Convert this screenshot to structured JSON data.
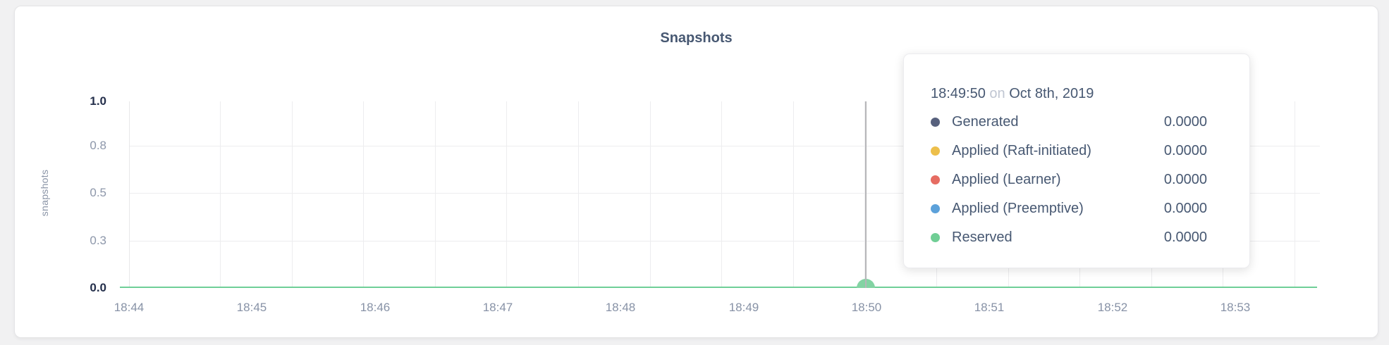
{
  "chart": {
    "title": "Snapshots",
    "y_axis": {
      "label": "snapshots",
      "ticks": [
        "1.0",
        "0.8",
        "0.5",
        "0.3",
        "0.0"
      ]
    },
    "x_axis": {
      "ticks": [
        "18:44",
        "18:45",
        "18:46",
        "18:47",
        "18:48",
        "18:49",
        "18:50",
        "18:51",
        "18:52",
        "18:53"
      ]
    }
  },
  "tooltip": {
    "time": "18:49:50",
    "connector": "on",
    "date": "Oct 8th, 2019",
    "rows": [
      {
        "label": "Generated",
        "value": "0.0000",
        "color": "#57617D"
      },
      {
        "label": "Applied (Raft-initiated)",
        "value": "0.0000",
        "color": "#EDBF4B"
      },
      {
        "label": "Applied (Learner)",
        "value": "0.0000",
        "color": "#E66C62"
      },
      {
        "label": "Applied (Preemptive)",
        "value": "0.0000",
        "color": "#5CA1DA"
      },
      {
        "label": "Reserved",
        "value": "0.0000",
        "color": "#70CE95"
      }
    ]
  },
  "chart_data": {
    "type": "line",
    "title": "Snapshots",
    "xlabel": "",
    "ylabel": "snapshots",
    "x_ticks": [
      "18:44",
      "18:45",
      "18:46",
      "18:47",
      "18:48",
      "18:49",
      "18:50",
      "18:51",
      "18:52",
      "18:53"
    ],
    "x_range": [
      "18:44:00",
      "18:53:40"
    ],
    "y_tick_labels": [
      "0.0",
      "0.3",
      "0.5",
      "0.8",
      "1.0"
    ],
    "y_tick_values": [
      0,
      0.25,
      0.5,
      0.75,
      1.0
    ],
    "ylim": [
      0,
      1
    ],
    "grid": true,
    "legend_position": "tooltip-only",
    "visible_flat_line_color": "#6fcf97",
    "series": [
      {
        "name": "Generated",
        "color": "#57617D",
        "constant_value": 0
      },
      {
        "name": "Applied (Raft-initiated)",
        "color": "#EDBF4B",
        "constant_value": 0
      },
      {
        "name": "Applied (Learner)",
        "color": "#E66C62",
        "constant_value": 0
      },
      {
        "name": "Applied (Preemptive)",
        "color": "#5CA1DA",
        "constant_value": 0
      },
      {
        "name": "Reserved",
        "color": "#70CE95",
        "constant_value": 0
      }
    ],
    "hover_point": {
      "x": "18:49:50",
      "values": {
        "Generated": 0.0,
        "Applied (Raft-initiated)": 0.0,
        "Applied (Learner)": 0.0,
        "Applied (Preemptive)": 0.0,
        "Reserved": 0.0
      }
    }
  }
}
